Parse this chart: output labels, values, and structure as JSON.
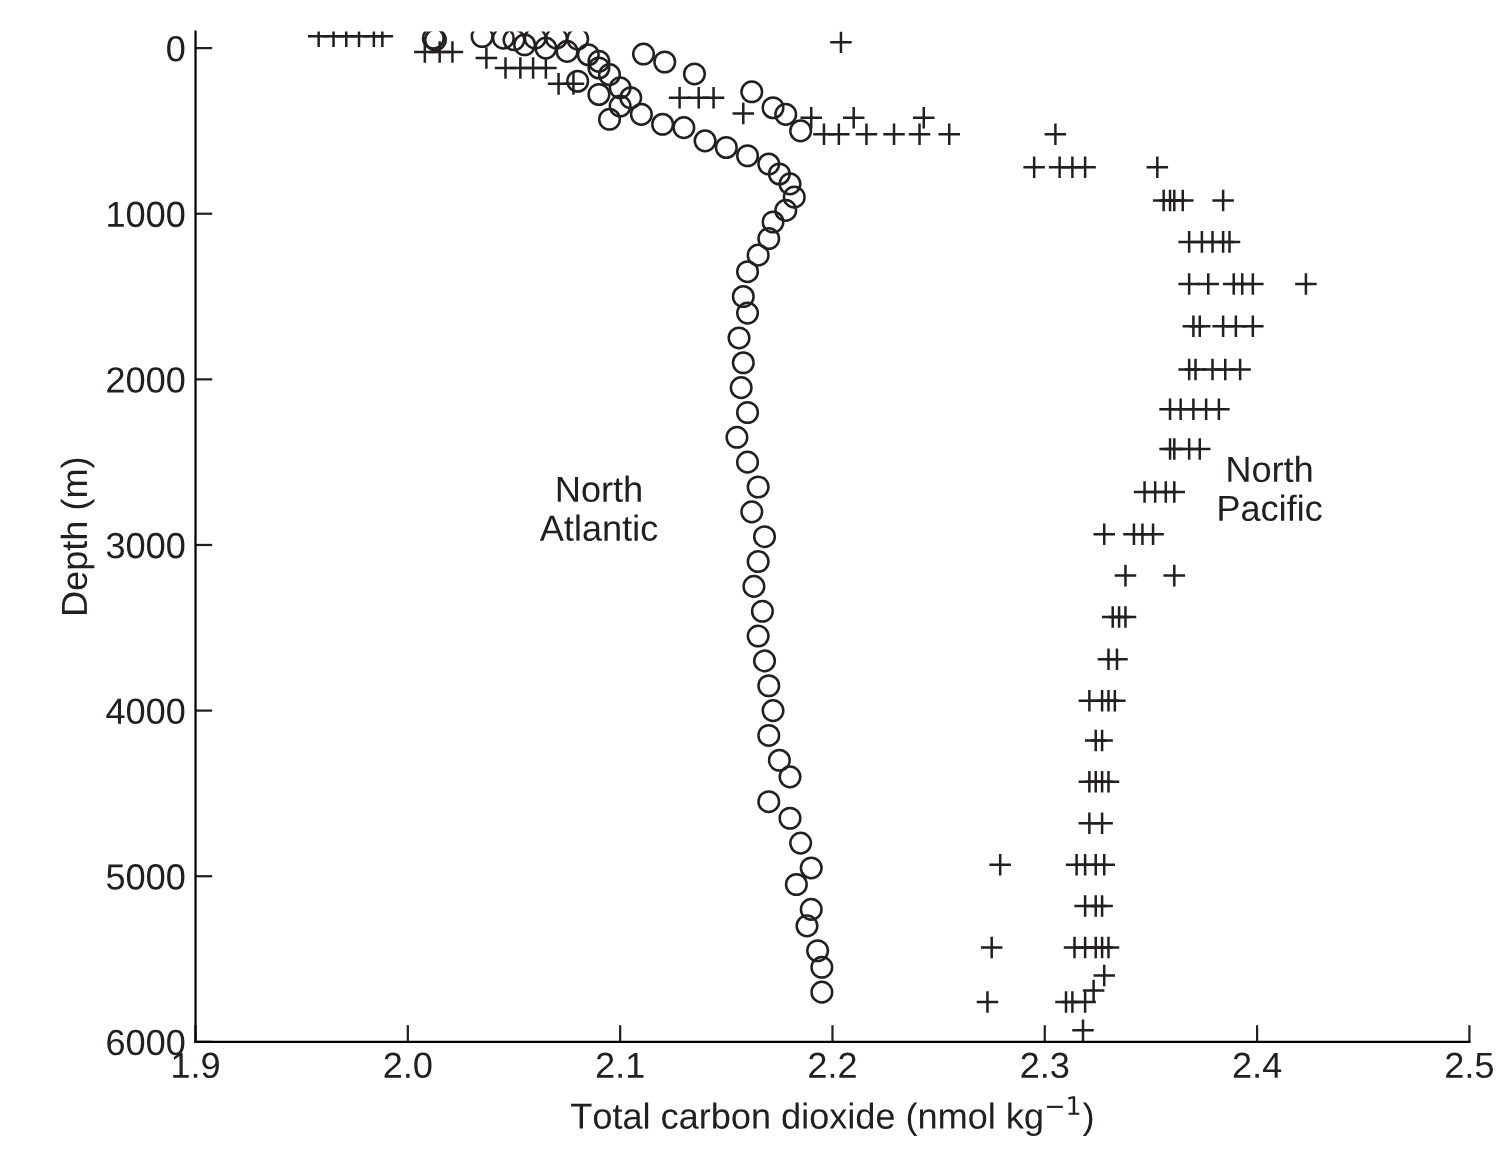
{
  "chart_data": {
    "type": "scatter",
    "xlabel": "Total carbon dioxide (nmol kg$^{−1}$)",
    "ylabel": "Depth (m)",
    "xlim": [
      1.9,
      2.5
    ],
    "xticks": [
      {
        "value": 1.9,
        "label": "1.9"
      },
      {
        "value": 2.0,
        "label": "2.0"
      },
      {
        "value": 2.1,
        "label": "2.1"
      },
      {
        "value": 2.2,
        "label": "2.2"
      },
      {
        "value": 2.3,
        "label": "2.3"
      },
      {
        "value": 2.4,
        "label": "2.4"
      },
      {
        "value": 2.5,
        "label": "2.5"
      }
    ],
    "ylim": [
      6000,
      -100
    ],
    "yticks": [
      0,
      1000,
      2000,
      3000,
      4000,
      5000,
      6000
    ],
    "grid": false,
    "legend": false,
    "series": [
      {
        "name": "North Atlantic",
        "color": "#231f20",
        "marker": "circle",
        "x": [
          2.012,
          2.013,
          2.035,
          2.045,
          2.05,
          2.06,
          2.07,
          2.08,
          2.055,
          2.065,
          2.075,
          2.085,
          2.09,
          2.09,
          2.095,
          2.08,
          2.1,
          2.09,
          2.105,
          2.1,
          2.11,
          2.095,
          2.12,
          2.13,
          2.14,
          2.15,
          2.16,
          2.17,
          2.175,
          2.18,
          2.182,
          2.178,
          2.172,
          2.17,
          2.165,
          2.16,
          2.158,
          2.16,
          2.156,
          2.158,
          2.157,
          2.16,
          2.155,
          2.16,
          2.165,
          2.162,
          2.168,
          2.165,
          2.163,
          2.167,
          2.165,
          2.168,
          2.17,
          2.172,
          2.17,
          2.175,
          2.18,
          2.17,
          2.18,
          2.185,
          2.19,
          2.183,
          2.19,
          2.188,
          2.193,
          2.195,
          2.195,
          2.111,
          2.121,
          2.135,
          2.162,
          2.172,
          2.178,
          2.185
        ],
        "values": [
          -60,
          -50,
          -70,
          -60,
          -50,
          -60,
          -60,
          -55,
          -20,
          0,
          20,
          40,
          80,
          120,
          160,
          200,
          240,
          280,
          300,
          350,
          400,
          430,
          460,
          480,
          560,
          600,
          650,
          700,
          760,
          820,
          900,
          980,
          1050,
          1150,
          1250,
          1350,
          1500,
          1600,
          1750,
          1900,
          2050,
          2200,
          2350,
          2500,
          2650,
          2800,
          2950,
          3100,
          3250,
          3400,
          3550,
          3700,
          3850,
          4000,
          4150,
          4300,
          4400,
          4550,
          4650,
          4800,
          4950,
          5050,
          5200,
          5300,
          5450,
          5550,
          5700,
          36,
          84,
          156,
          264,
          360,
          400,
          500
        ]
      },
      {
        "name": "North Pacific",
        "color": "#231f20",
        "marker": "cross",
        "x": [
          1.958,
          1.965,
          1.971,
          1.977,
          1.984,
          1.988,
          2.008,
          2.015,
          2.021,
          2.037,
          2.046,
          2.053,
          2.059,
          2.065,
          2.071,
          2.078,
          2.128,
          2.137,
          2.144,
          2.158,
          2.204,
          2.19,
          2.21,
          2.243,
          2.196,
          2.203,
          2.216,
          2.229,
          2.241,
          2.255,
          2.305,
          2.295,
          2.307,
          2.313,
          2.319,
          2.353,
          2.356,
          2.359,
          2.361,
          2.365,
          2.384,
          2.368,
          2.374,
          2.379,
          2.384,
          2.387,
          2.368,
          2.377,
          2.389,
          2.393,
          2.398,
          2.423,
          2.37,
          2.373,
          2.384,
          2.39,
          2.398,
          2.368,
          2.371,
          2.379,
          2.385,
          2.392,
          2.359,
          2.364,
          2.37,
          2.376,
          2.382,
          2.359,
          2.361,
          2.368,
          2.373,
          2.347,
          2.352,
          2.357,
          2.361,
          2.328,
          2.342,
          2.346,
          2.351,
          2.338,
          2.361,
          2.332,
          2.335,
          2.338,
          2.33,
          2.334,
          2.321,
          2.327,
          2.33,
          2.333,
          2.324,
          2.327,
          2.321,
          2.324,
          2.327,
          2.33,
          2.321,
          2.327,
          2.279,
          2.315,
          2.319,
          2.324,
          2.328,
          2.319,
          2.324,
          2.327,
          2.275,
          2.314,
          2.319,
          2.324,
          2.327,
          2.33,
          2.328,
          2.323,
          2.273,
          2.31,
          2.313,
          2.319,
          2.318
        ],
        "values": [
          -72,
          -72,
          -72,
          -72,
          -72,
          -72,
          24,
          24,
          24,
          60,
          120,
          120,
          120,
          120,
          216,
          216,
          300,
          300,
          300,
          395,
          -36,
          420,
          420,
          420,
          520,
          520,
          520,
          520,
          520,
          520,
          520,
          720,
          720,
          720,
          720,
          720,
          920,
          920,
          920,
          920,
          920,
          1170,
          1170,
          1170,
          1170,
          1170,
          1425,
          1425,
          1425,
          1425,
          1425,
          1425,
          1680,
          1680,
          1680,
          1680,
          1680,
          1940,
          1940,
          1940,
          1940,
          1940,
          2180,
          2180,
          2180,
          2180,
          2180,
          2420,
          2420,
          2420,
          2420,
          2680,
          2680,
          2680,
          2680,
          2935,
          2935,
          2935,
          2935,
          3185,
          3185,
          3435,
          3435,
          3435,
          3690,
          3690,
          3940,
          3940,
          3940,
          3940,
          4180,
          4180,
          4430,
          4430,
          4430,
          4430,
          4680,
          4680,
          4930,
          4930,
          4930,
          4930,
          4930,
          5180,
          5180,
          5180,
          5430,
          5430,
          5430,
          5430,
          5430,
          5430,
          5600,
          5690,
          5760,
          5760,
          5760,
          5760,
          5930
        ]
      }
    ]
  }
}
